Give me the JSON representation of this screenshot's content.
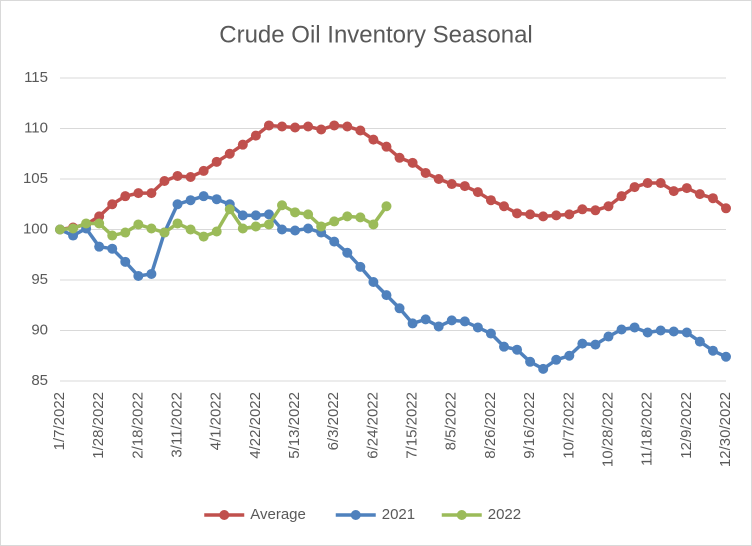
{
  "chart_data": {
    "type": "line",
    "title": "Crude Oil Inventory Seasonal",
    "categories": [
      "1/7/2022",
      null,
      null,
      "1/28/2022",
      null,
      null,
      "2/18/2022",
      null,
      null,
      "3/11/2022",
      null,
      null,
      "4/1/2022",
      null,
      null,
      "4/22/2022",
      null,
      null,
      "5/13/2022",
      null,
      null,
      "6/3/2022",
      null,
      null,
      "6/24/2022",
      null,
      null,
      "7/15/2022",
      null,
      null,
      "8/5/2022",
      null,
      null,
      "8/26/2022",
      null,
      null,
      "9/16/2022",
      null,
      null,
      "10/7/2022",
      null,
      null,
      "10/28/2022",
      null,
      null,
      "11/18/2022",
      null,
      null,
      "12/9/2022",
      null,
      null,
      "12/30/2022"
    ],
    "series": [
      {
        "name": "Average",
        "color": "#c0504d",
        "values": [
          100,
          100.2,
          100.5,
          101.3,
          102.5,
          103.3,
          103.6,
          103.6,
          104.8,
          105.3,
          105.2,
          105.8,
          106.7,
          107.5,
          108.4,
          109.3,
          110.3,
          110.2,
          110.1,
          110.2,
          109.9,
          110.3,
          110.2,
          109.8,
          108.9,
          108.2,
          107.1,
          106.6,
          105.6,
          105.0,
          104.5,
          104.3,
          103.7,
          102.9,
          102.3,
          101.6,
          101.5,
          101.3,
          101.4,
          101.5,
          102.0,
          101.9,
          102.3,
          103.3,
          104.2,
          104.6,
          104.6,
          103.8,
          104.1,
          103.5,
          103.1,
          102.1
        ]
      },
      {
        "name": "2021",
        "color": "#4f81bd",
        "values": [
          100,
          99.4,
          100.1,
          98.3,
          98.1,
          96.8,
          95.4,
          95.6,
          99.7,
          102.5,
          102.9,
          103.3,
          103.0,
          102.5,
          101.4,
          101.4,
          101.5,
          100.0,
          99.9,
          100.1,
          99.7,
          98.8,
          97.7,
          96.3,
          94.8,
          93.5,
          92.2,
          90.7,
          91.1,
          90.4,
          91.0,
          90.9,
          90.3,
          89.7,
          88.4,
          88.1,
          86.9,
          86.2,
          87.1,
          87.5,
          88.7,
          88.6,
          89.4,
          90.1,
          90.3,
          89.8,
          90.0,
          89.9,
          89.8,
          88.9,
          88.0,
          87.4
        ]
      },
      {
        "name": "2022",
        "color": "#9bbb59",
        "values": [
          100,
          100.1,
          100.6,
          100.6,
          99.4,
          99.7,
          100.5,
          100.1,
          99.7,
          100.6,
          100.0,
          99.3,
          99.8,
          102.0,
          100.1,
          100.3,
          100.5,
          102.4,
          101.7,
          101.5,
          100.3,
          100.8,
          101.3,
          101.2,
          100.5,
          102.3,
          null,
          null,
          null,
          null,
          null,
          null,
          null,
          null,
          null,
          null,
          null,
          null,
          null,
          null,
          null,
          null,
          null,
          null,
          null,
          null,
          null,
          null,
          null,
          null,
          null,
          null
        ]
      }
    ],
    "ylim": [
      85,
      115
    ],
    "yticks": [
      85,
      90,
      95,
      100,
      105,
      110,
      115
    ],
    "grid": true,
    "legend": "bottom"
  }
}
